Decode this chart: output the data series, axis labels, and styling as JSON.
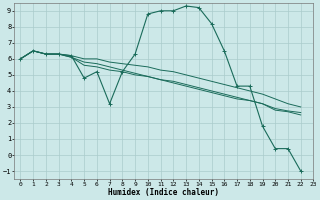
{
  "xlabel": "Humidex (Indice chaleur)",
  "bg_color": "#cce8e8",
  "grid_color": "#aacccc",
  "line_color": "#1a6b5a",
  "xlim": [
    -0.5,
    23
  ],
  "ylim": [
    -1.5,
    9.5
  ],
  "xtick_labels": [
    "0",
    "1",
    "2",
    "3",
    "4",
    "5",
    "6",
    "7",
    "8",
    "9",
    "10",
    "11",
    "12",
    "13",
    "14",
    "15",
    "16",
    "17",
    "18",
    "19",
    "20",
    "21",
    "22",
    "23"
  ],
  "xticks": [
    0,
    1,
    2,
    3,
    4,
    5,
    6,
    7,
    8,
    9,
    10,
    11,
    12,
    13,
    14,
    15,
    16,
    17,
    18,
    19,
    20,
    21,
    22,
    23
  ],
  "yticks": [
    -1,
    0,
    1,
    2,
    3,
    4,
    5,
    6,
    7,
    8,
    9
  ],
  "series_jagged": {
    "x": [
      0,
      1,
      2,
      3,
      4,
      5,
      6,
      7,
      8,
      9,
      10,
      11,
      12,
      13,
      14,
      15,
      16,
      17,
      18,
      19,
      20,
      21,
      22
    ],
    "y": [
      6.0,
      6.5,
      6.3,
      6.3,
      6.2,
      4.8,
      5.2,
      3.2,
      5.2,
      6.3,
      8.8,
      9.0,
      9.0,
      9.3,
      9.2,
      8.2,
      6.5,
      4.3,
      4.3,
      1.8,
      0.4,
      0.4,
      -1.0
    ]
  },
  "series_line1": {
    "x": [
      0,
      1,
      2,
      3,
      4,
      5,
      6,
      7,
      8,
      9,
      10,
      11,
      12,
      13,
      14,
      15,
      16,
      17,
      18,
      19,
      20,
      21,
      22
    ],
    "y": [
      6.0,
      6.5,
      6.3,
      6.3,
      6.1,
      5.8,
      5.7,
      5.5,
      5.3,
      5.1,
      4.9,
      4.7,
      4.5,
      4.3,
      4.1,
      3.9,
      3.7,
      3.5,
      3.4,
      3.2,
      2.9,
      2.75,
      2.65
    ]
  },
  "series_line2": {
    "x": [
      0,
      1,
      2,
      3,
      4,
      5,
      6,
      7,
      8,
      9,
      10,
      11,
      12,
      13,
      14,
      15,
      16,
      17,
      18,
      19,
      20,
      21,
      22
    ],
    "y": [
      6.0,
      6.5,
      6.3,
      6.3,
      6.1,
      5.6,
      5.5,
      5.3,
      5.2,
      5.0,
      4.9,
      4.7,
      4.6,
      4.4,
      4.2,
      4.0,
      3.8,
      3.6,
      3.4,
      3.2,
      2.8,
      2.7,
      2.5
    ]
  },
  "series_smooth": {
    "x": [
      0,
      1,
      2,
      3,
      4,
      5,
      6,
      7,
      8,
      9,
      10,
      11,
      12,
      13,
      14,
      15,
      16,
      17,
      18,
      19,
      20,
      21,
      22
    ],
    "y": [
      6.0,
      6.5,
      6.3,
      6.3,
      6.2,
      6.0,
      6.0,
      5.8,
      5.7,
      5.6,
      5.5,
      5.3,
      5.2,
      5.0,
      4.8,
      4.6,
      4.4,
      4.2,
      4.0,
      3.8,
      3.5,
      3.2,
      3.0
    ]
  }
}
